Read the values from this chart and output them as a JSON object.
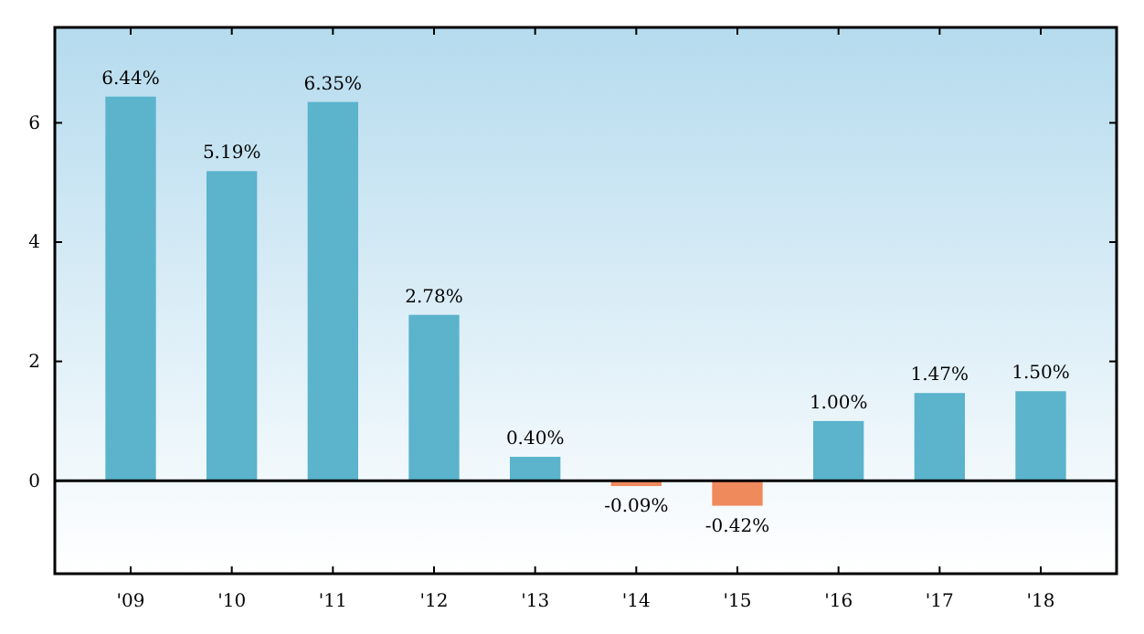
{
  "chart_data": {
    "type": "bar",
    "categories": [
      "'09",
      "'10",
      "'11",
      "'12",
      "'13",
      "'14",
      "'15",
      "'16",
      "'17",
      "'18"
    ],
    "values": [
      6.44,
      5.19,
      6.35,
      2.78,
      0.4,
      -0.09,
      -0.42,
      1.0,
      1.47,
      1.5
    ],
    "colors": [
      "#5bb3cc",
      "#5bb3cc",
      "#5bb3cc",
      "#5bb3cc",
      "#5bb3cc",
      "#ef8a5c",
      "#ef8a5c",
      "#5bb3cc",
      "#5bb3cc",
      "#5bb3cc"
    ],
    "value_labels": [
      "6.44%",
      "5.19%",
      "6.35%",
      "2.78%",
      "0.40%",
      "-0.09%",
      "-0.42%",
      "1.00%",
      "1.47%",
      "1.50%"
    ],
    "ylim": [
      -1.56,
      7.6
    ],
    "yticks": [
      0,
      2,
      4,
      6
    ],
    "ref_lines": [
      {
        "axis": "y",
        "value": 0,
        "color": "#000000"
      }
    ]
  }
}
